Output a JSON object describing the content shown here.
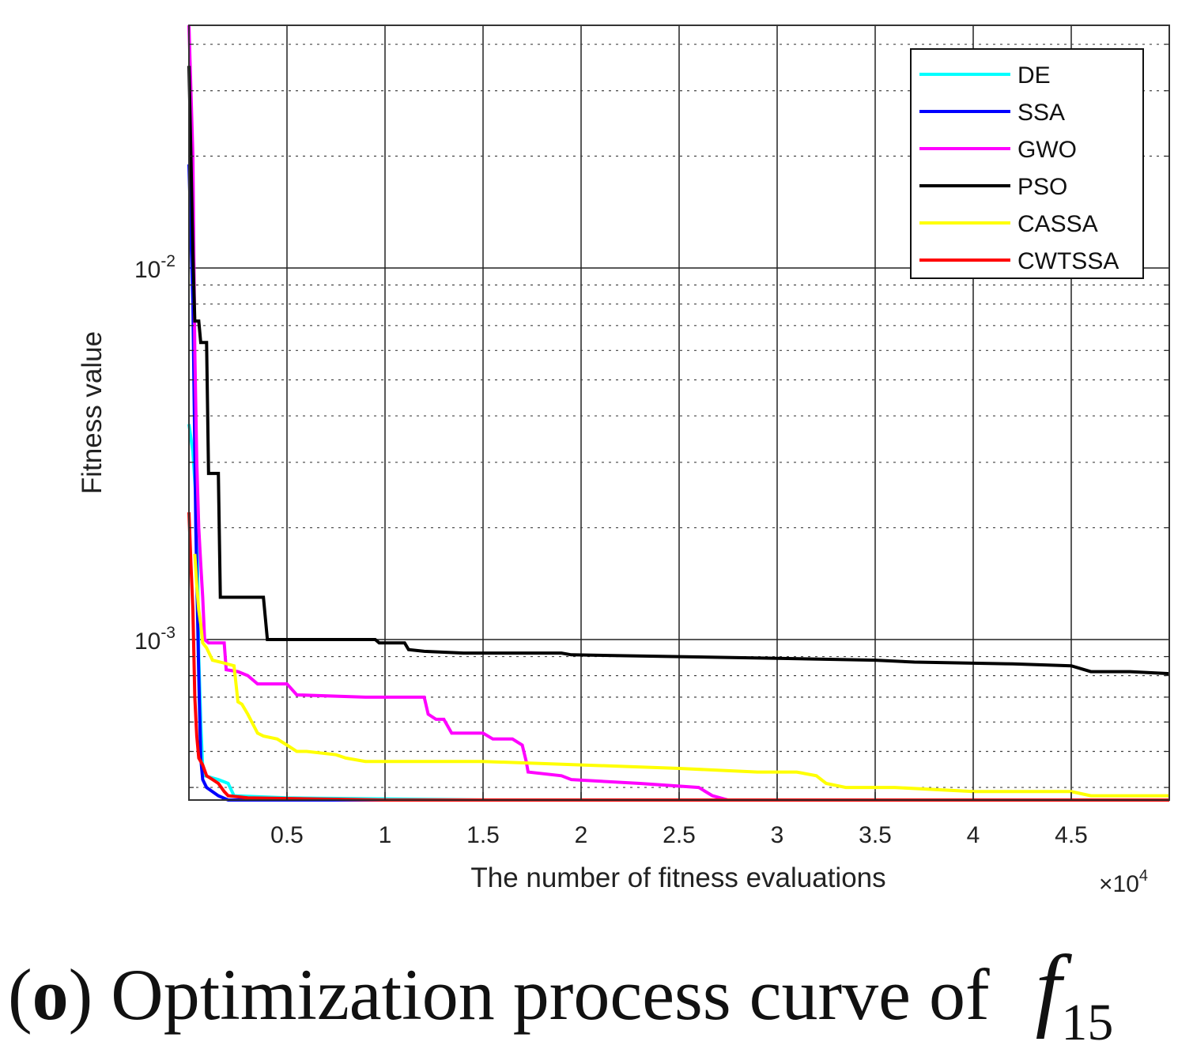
{
  "chart_data": {
    "type": "line",
    "xlabel": "The number of fitness evaluations",
    "ylabel": "Fitness value",
    "x_multiplier": "×10",
    "x_multiplier_exp": "4",
    "xlim": [
      0,
      50000
    ],
    "ylim": [
      0.00037,
      0.045
    ],
    "yscale": "log",
    "grid": true,
    "legend_position": "top-right",
    "x_ticks": [
      5000,
      10000,
      15000,
      20000,
      25000,
      30000,
      35000,
      40000,
      45000
    ],
    "x_tick_labels": [
      "0.5",
      "1",
      "1.5",
      "2",
      "2.5",
      "3",
      "3.5",
      "4",
      "4.5"
    ],
    "y_ticks": [
      {
        "value": 0.01,
        "base": "10",
        "exp": "-2"
      },
      {
        "value": 0.001,
        "base": "10",
        "exp": "-3"
      }
    ],
    "series": [
      {
        "name": "DE",
        "color": "#00ffff",
        "points": [
          [
            0,
            0.0038
          ],
          [
            200,
            0.0032
          ],
          [
            400,
            0.0022
          ],
          [
            500,
            0.0009
          ],
          [
            600,
            0.0006
          ],
          [
            700,
            0.00045
          ],
          [
            800,
            0.00043
          ],
          [
            1500,
            0.00042
          ],
          [
            2000,
            0.00041
          ],
          [
            2300,
            0.00038
          ],
          [
            5000,
            0.000375
          ],
          [
            15000,
            0.00037
          ],
          [
            50000,
            0.00037
          ]
        ]
      },
      {
        "name": "SSA",
        "color": "#0000ff",
        "points": [
          [
            0,
            0.019
          ],
          [
            200,
            0.008
          ],
          [
            350,
            0.002
          ],
          [
            500,
            0.0008
          ],
          [
            600,
            0.00048
          ],
          [
            700,
            0.00042
          ],
          [
            900,
            0.0004
          ],
          [
            1500,
            0.00038
          ],
          [
            2000,
            0.00037
          ],
          [
            50000,
            0.00037
          ]
        ]
      },
      {
        "name": "GWO",
        "color": "#ff00ff",
        "points": [
          [
            0,
            0.045
          ],
          [
            200,
            0.02
          ],
          [
            300,
            0.006
          ],
          [
            400,
            0.003
          ],
          [
            500,
            0.002
          ],
          [
            600,
            0.0016
          ],
          [
            700,
            0.0013
          ],
          [
            800,
            0.001
          ],
          [
            1000,
            0.00098
          ],
          [
            1800,
            0.00098
          ],
          [
            1900,
            0.00083
          ],
          [
            2500,
            0.00082
          ],
          [
            3000,
            0.0008
          ],
          [
            3500,
            0.00076
          ],
          [
            5000,
            0.00076
          ],
          [
            5500,
            0.00071
          ],
          [
            9000,
            0.0007
          ],
          [
            12000,
            0.0007
          ],
          [
            12200,
            0.00063
          ],
          [
            12600,
            0.00061
          ],
          [
            13000,
            0.00061
          ],
          [
            13400,
            0.00056
          ],
          [
            15000,
            0.00056
          ],
          [
            15500,
            0.00054
          ],
          [
            16500,
            0.00054
          ],
          [
            17000,
            0.00052
          ],
          [
            17200,
            0.00047
          ],
          [
            17300,
            0.00044
          ],
          [
            19000,
            0.00043
          ],
          [
            19500,
            0.00042
          ],
          [
            23000,
            0.00041
          ],
          [
            26000,
            0.0004
          ],
          [
            26700,
            0.00038
          ],
          [
            27500,
            0.00037
          ],
          [
            50000,
            0.00037
          ]
        ]
      },
      {
        "name": "PSO",
        "color": "#000000",
        "points": [
          [
            0,
            0.035
          ],
          [
            100,
            0.02
          ],
          [
            200,
            0.011
          ],
          [
            300,
            0.0072
          ],
          [
            500,
            0.0072
          ],
          [
            600,
            0.0063
          ],
          [
            900,
            0.0063
          ],
          [
            1000,
            0.0028
          ],
          [
            1500,
            0.0028
          ],
          [
            1600,
            0.0013
          ],
          [
            3800,
            0.0013
          ],
          [
            4000,
            0.001
          ],
          [
            9500,
            0.001
          ],
          [
            9700,
            0.00098
          ],
          [
            11000,
            0.00098
          ],
          [
            11200,
            0.00094
          ],
          [
            12000,
            0.00093
          ],
          [
            14000,
            0.00092
          ],
          [
            19000,
            0.00092
          ],
          [
            19500,
            0.00091
          ],
          [
            25000,
            0.0009
          ],
          [
            30000,
            0.00089
          ],
          [
            35000,
            0.00088
          ],
          [
            37000,
            0.00087
          ],
          [
            42000,
            0.00086
          ],
          [
            45000,
            0.00085
          ],
          [
            46000,
            0.00082
          ],
          [
            48000,
            0.00082
          ],
          [
            50000,
            0.00081
          ]
        ]
      },
      {
        "name": "CASSA",
        "color": "#ffff00",
        "points": [
          [
            300,
            0.0017
          ],
          [
            400,
            0.0014
          ],
          [
            500,
            0.0012
          ],
          [
            600,
            0.0011
          ],
          [
            700,
            0.00098
          ],
          [
            900,
            0.00095
          ],
          [
            1200,
            0.00088
          ],
          [
            1600,
            0.00087
          ],
          [
            2300,
            0.00085
          ],
          [
            2500,
            0.00068
          ],
          [
            2700,
            0.00067
          ],
          [
            3000,
            0.00063
          ],
          [
            3500,
            0.00056
          ],
          [
            3800,
            0.00055
          ],
          [
            4500,
            0.00054
          ],
          [
            5000,
            0.00052
          ],
          [
            5500,
            0.0005
          ],
          [
            6000,
            0.0005
          ],
          [
            7500,
            0.00049
          ],
          [
            8000,
            0.00048
          ],
          [
            9000,
            0.00047
          ],
          [
            12000,
            0.00047
          ],
          [
            15000,
            0.00047
          ],
          [
            20000,
            0.00046
          ],
          [
            25000,
            0.00045
          ],
          [
            29000,
            0.00044
          ],
          [
            31000,
            0.00044
          ],
          [
            32000,
            0.00043
          ],
          [
            32500,
            0.00041
          ],
          [
            33500,
            0.0004
          ],
          [
            36000,
            0.0004
          ],
          [
            40000,
            0.00039
          ],
          [
            45000,
            0.00039
          ],
          [
            46000,
            0.00038
          ],
          [
            50000,
            0.00038
          ]
        ]
      },
      {
        "name": "CWTSSA",
        "color": "#ff0000",
        "points": [
          [
            0,
            0.0022
          ],
          [
            100,
            0.0016
          ],
          [
            200,
            0.0012
          ],
          [
            300,
            0.0007
          ],
          [
            400,
            0.00055
          ],
          [
            500,
            0.00048
          ],
          [
            600,
            0.00047
          ],
          [
            700,
            0.00046
          ],
          [
            900,
            0.00043
          ],
          [
            1200,
            0.00042
          ],
          [
            1500,
            0.00041
          ],
          [
            1800,
            0.00039
          ],
          [
            2000,
            0.00038
          ],
          [
            3000,
            0.000375
          ],
          [
            10000,
            0.00037
          ],
          [
            50000,
            0.00037
          ]
        ]
      }
    ]
  },
  "caption": {
    "label": "(o)",
    "label_letter": "o",
    "text": " Optimization process curve of",
    "symbol": "f",
    "subscript": "15"
  }
}
